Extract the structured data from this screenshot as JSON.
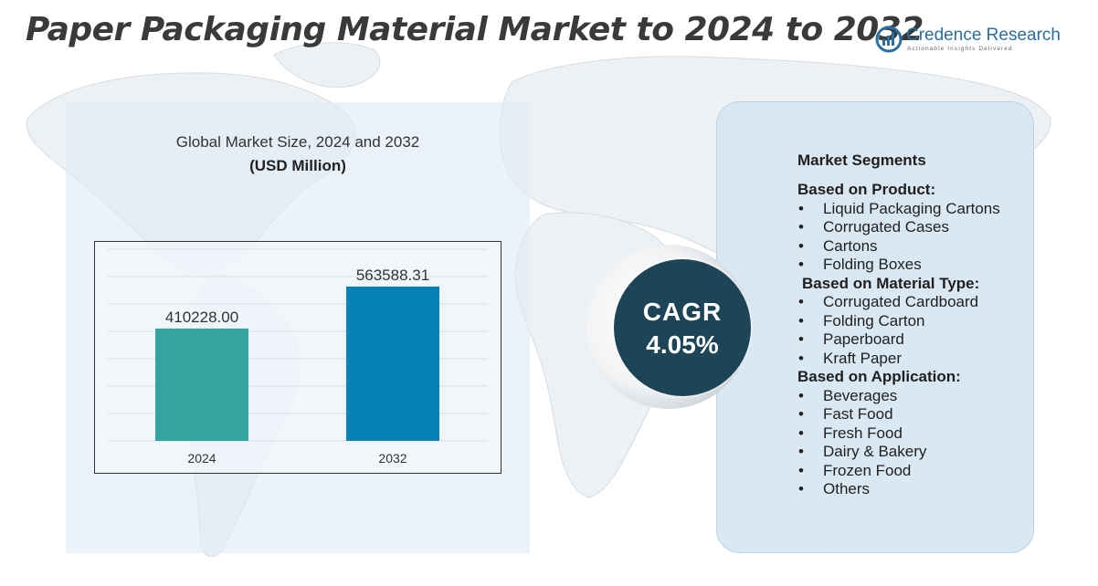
{
  "title": "Paper Packaging Material Market to 2024 to 2032",
  "logo": {
    "name": "Credence Research",
    "tagline": "Actionable Insights Delivered"
  },
  "colors": {
    "bar_2024": "#35A3A0",
    "bar_2032": "#0782B7",
    "cagr_circle": "#1E4458",
    "title_text": "#3A3A3A"
  },
  "chart_data": {
    "type": "bar",
    "title": "Global Market Size, 2024 and 2032",
    "subtitle": "(USD Million)",
    "categories": [
      "2024",
      "2032"
    ],
    "values": [
      410228.0,
      563588.31
    ],
    "value_labels": [
      "410228.00",
      "563588.31"
    ],
    "ylim": [
      0,
      700000
    ],
    "grid": true
  },
  "cagr": {
    "label": "CAGR",
    "value": "4.05%"
  },
  "segments": {
    "title": "Market Segments",
    "groups": [
      {
        "title": "Based on Product:",
        "items": [
          "Liquid Packaging Cartons",
          "Corrugated Cases",
          "Cartons",
          "Folding Boxes"
        ]
      },
      {
        "title": "Based on Material Type:",
        "items": [
          "Corrugated Cardboard",
          "Folding Carton",
          "Paperboard",
          "Kraft Paper"
        ]
      },
      {
        "title": "Based on Application:",
        "items": [
          "Beverages",
          "Fast Food",
          "Fresh Food",
          "Dairy & Bakery",
          "Frozen Food",
          "Others"
        ]
      }
    ]
  }
}
